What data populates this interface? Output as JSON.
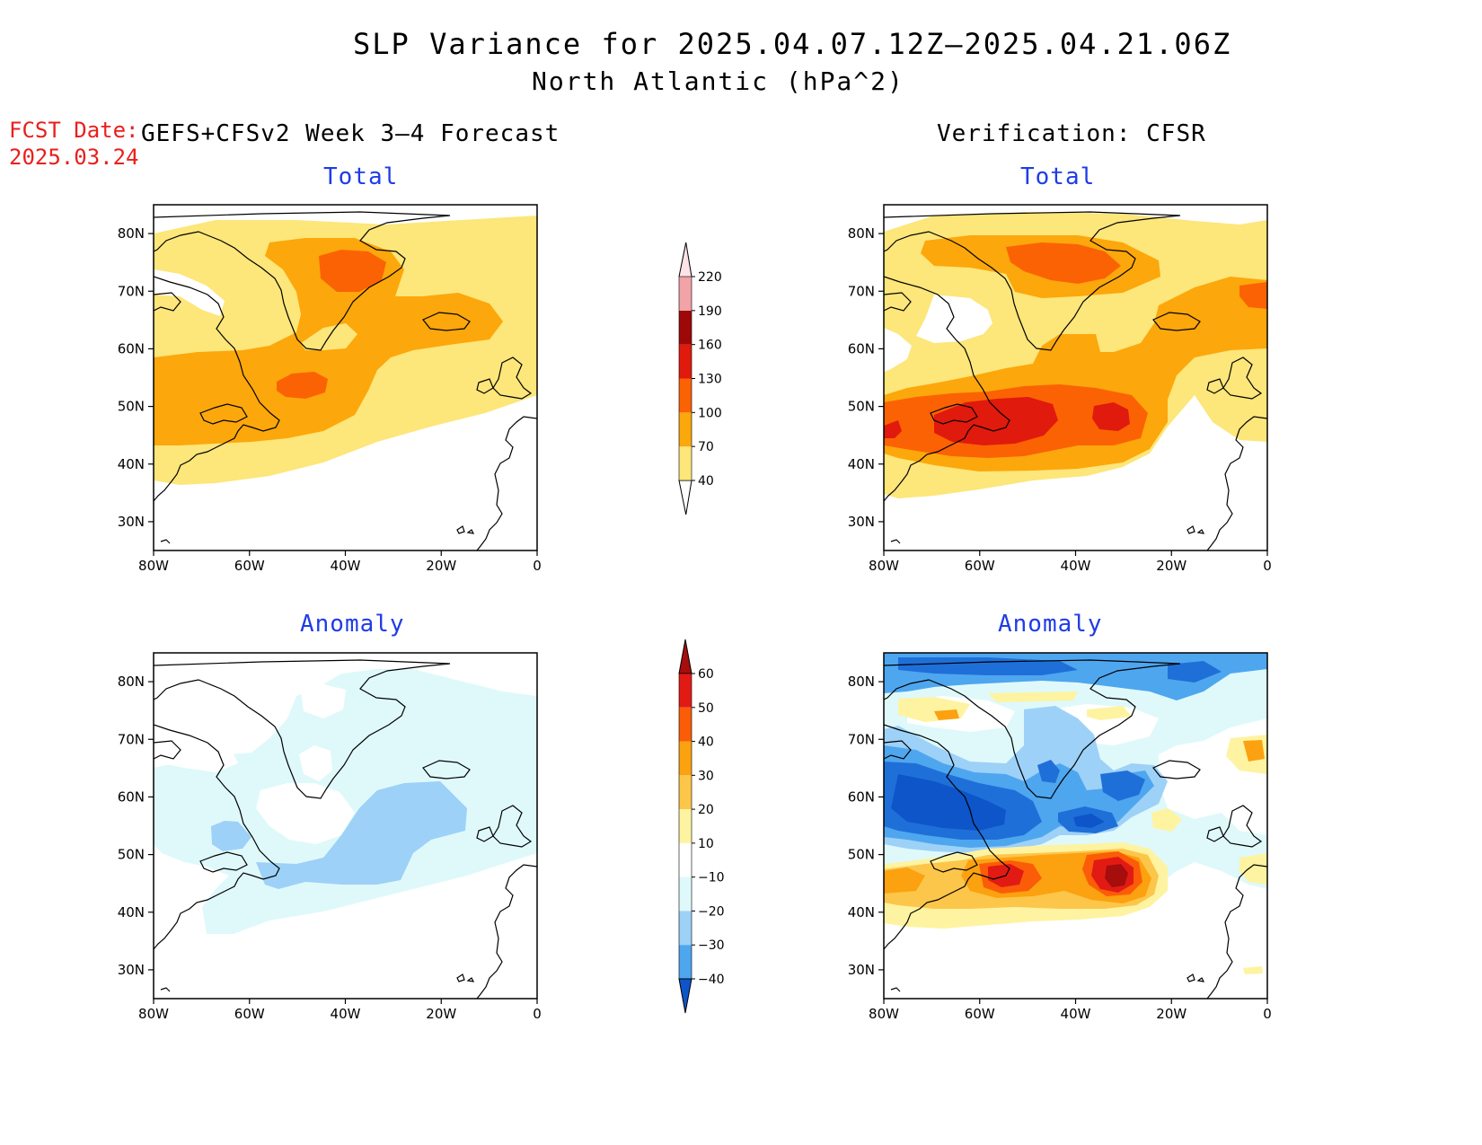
{
  "title": {
    "line1": "SLP Variance for 2025.04.07.12Z—2025.04.21.06Z",
    "line2": "North Atlantic (hPa^2)"
  },
  "fcst_date": {
    "label": "FCST Date:",
    "value": "2025.03.24"
  },
  "columns": {
    "left": "GEFS+CFSv2 Week 3—4 Forecast",
    "right": "Verification: CFSR"
  },
  "panel_titles": {
    "total": "Total",
    "anomaly": "Anomaly"
  },
  "axes": {
    "lon_labels": [
      "80W",
      "60W",
      "40W",
      "20W",
      "0"
    ],
    "lon_values": [
      -80,
      -60,
      -40,
      -20,
      0
    ],
    "lat_labels": [
      "80N",
      "70N",
      "60N",
      "50N",
      "40N",
      "30N"
    ],
    "lat_values": [
      80,
      70,
      60,
      50,
      40,
      30
    ],
    "lon_range": [
      -80,
      0
    ],
    "lat_range": [
      25,
      85
    ]
  },
  "colorbars": {
    "total": {
      "levels": [
        "40",
        "70",
        "100",
        "130",
        "160",
        "190",
        "220"
      ],
      "colors": [
        "#fde67a",
        "#fca70b",
        "#fb6204",
        "#e01a0c",
        "#9e0808",
        "#f2a3a8",
        "#fbe3e6"
      ]
    },
    "anomaly": {
      "levels": [
        "60",
        "50",
        "40",
        "30",
        "20",
        "10",
        "−10",
        "−20",
        "−30",
        "−40"
      ],
      "colors": [
        "#a60d0d",
        "#e11b14",
        "#fb5c08",
        "#fca10f",
        "#fcc64a",
        "#fef3a0",
        "#ffffff",
        "#dff9fb",
        "#9dd1f7",
        "#4ea6ef",
        "#1f6fd9",
        "#0d55c9"
      ]
    }
  }
}
